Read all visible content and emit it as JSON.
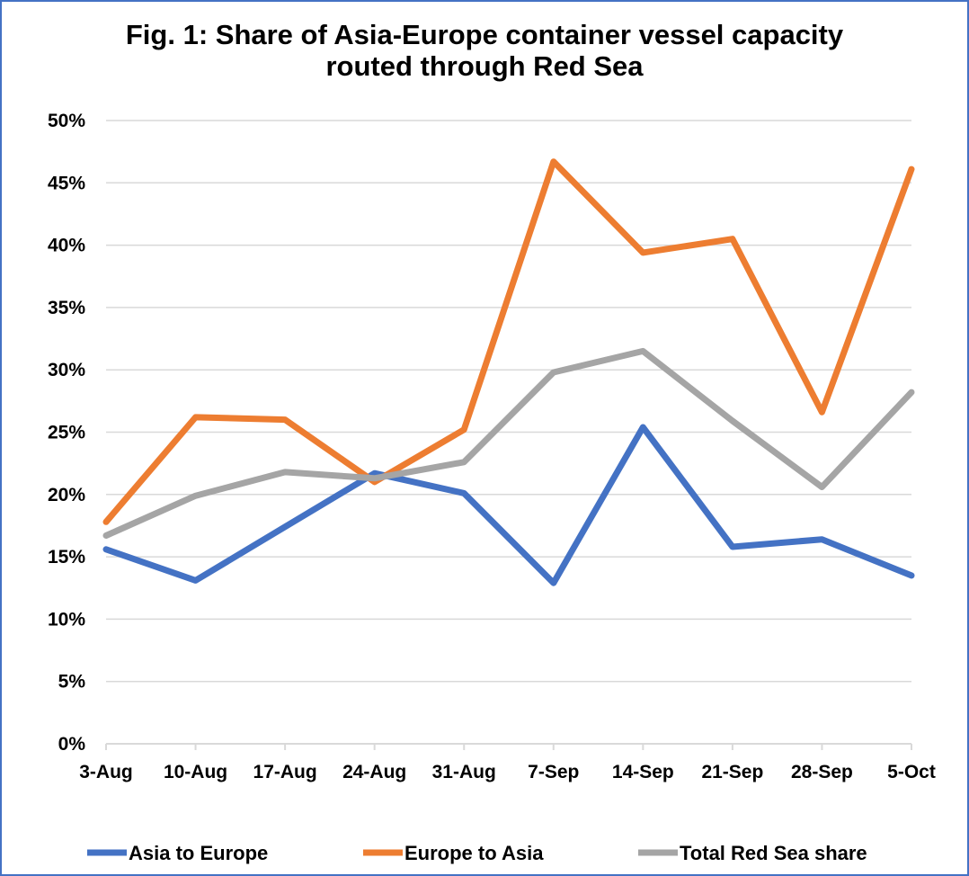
{
  "chart_data": {
    "type": "line",
    "title": "Fig. 1: Share of Asia-Europe container vessel capacity",
    "subtitle": "routed through Red Sea",
    "categories": [
      "3-Aug",
      "10-Aug",
      "17-Aug",
      "24-Aug",
      "31-Aug",
      "7-Sep",
      "14-Sep",
      "21-Sep",
      "28-Sep",
      "5-Oct"
    ],
    "y_ticks": [
      "0%",
      "5%",
      "10%",
      "15%",
      "20%",
      "25%",
      "30%",
      "35%",
      "40%",
      "45%",
      "50%"
    ],
    "ylim": [
      0,
      50
    ],
    "grid": true,
    "legend_position": "bottom",
    "series": [
      {
        "name": "Asia to Europe",
        "color": "#4472c4",
        "values": [
          15.6,
          13.1,
          17.4,
          21.7,
          20.1,
          12.9,
          25.4,
          15.8,
          16.4,
          13.5
        ]
      },
      {
        "name": "Europe to Asia",
        "color": "#ed7d31",
        "values": [
          17.8,
          26.2,
          26.0,
          21.0,
          25.2,
          46.7,
          39.4,
          40.5,
          26.6,
          46.1
        ]
      },
      {
        "name": "Total Red Sea share",
        "color": "#a5a5a5",
        "values": [
          16.7,
          19.9,
          21.8,
          21.3,
          22.6,
          29.8,
          31.5,
          25.9,
          20.6,
          28.2
        ]
      }
    ]
  }
}
